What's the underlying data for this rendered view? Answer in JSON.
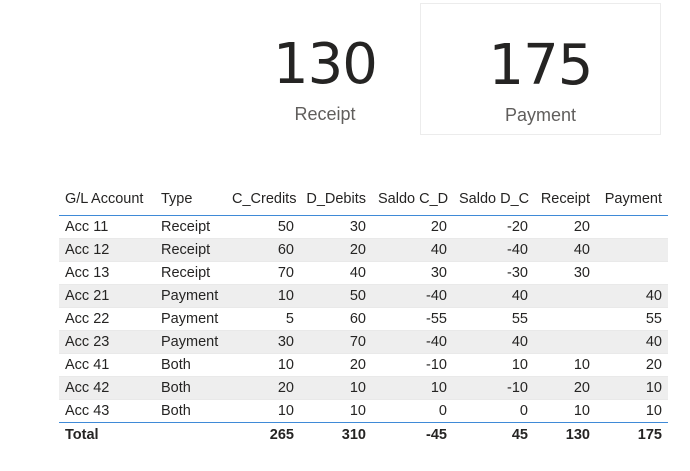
{
  "cards": [
    {
      "value": "130",
      "label": "Receipt"
    },
    {
      "value": "175",
      "label": "Payment"
    }
  ],
  "table": {
    "columns": [
      "G/L Account",
      "Type",
      "C_Credits",
      "D_Debits",
      "Saldo C_D",
      "Saldo D_C",
      "Receipt",
      "Payment"
    ],
    "rows": [
      [
        "Acc 11",
        "Receipt",
        "50",
        "30",
        "20",
        "-20",
        "20",
        ""
      ],
      [
        "Acc 12",
        "Receipt",
        "60",
        "20",
        "40",
        "-40",
        "40",
        ""
      ],
      [
        "Acc 13",
        "Receipt",
        "70",
        "40",
        "30",
        "-30",
        "30",
        ""
      ],
      [
        "Acc 21",
        "Payment",
        "10",
        "50",
        "-40",
        "40",
        "",
        "40"
      ],
      [
        "Acc 22",
        "Payment",
        "5",
        "60",
        "-55",
        "55",
        "",
        "55"
      ],
      [
        "Acc 23",
        "Payment",
        "30",
        "70",
        "-40",
        "40",
        "",
        "40"
      ],
      [
        "Acc 41",
        "Both",
        "10",
        "20",
        "-10",
        "10",
        "10",
        "20"
      ],
      [
        "Acc 42",
        "Both",
        "20",
        "10",
        "10",
        "-10",
        "20",
        "10"
      ],
      [
        "Acc 43",
        "Both",
        "10",
        "10",
        "0",
        "0",
        "10",
        "10"
      ]
    ],
    "total": [
      "Total",
      "",
      "265",
      "310",
      "-45",
      "45",
      "130",
      "175"
    ]
  }
}
